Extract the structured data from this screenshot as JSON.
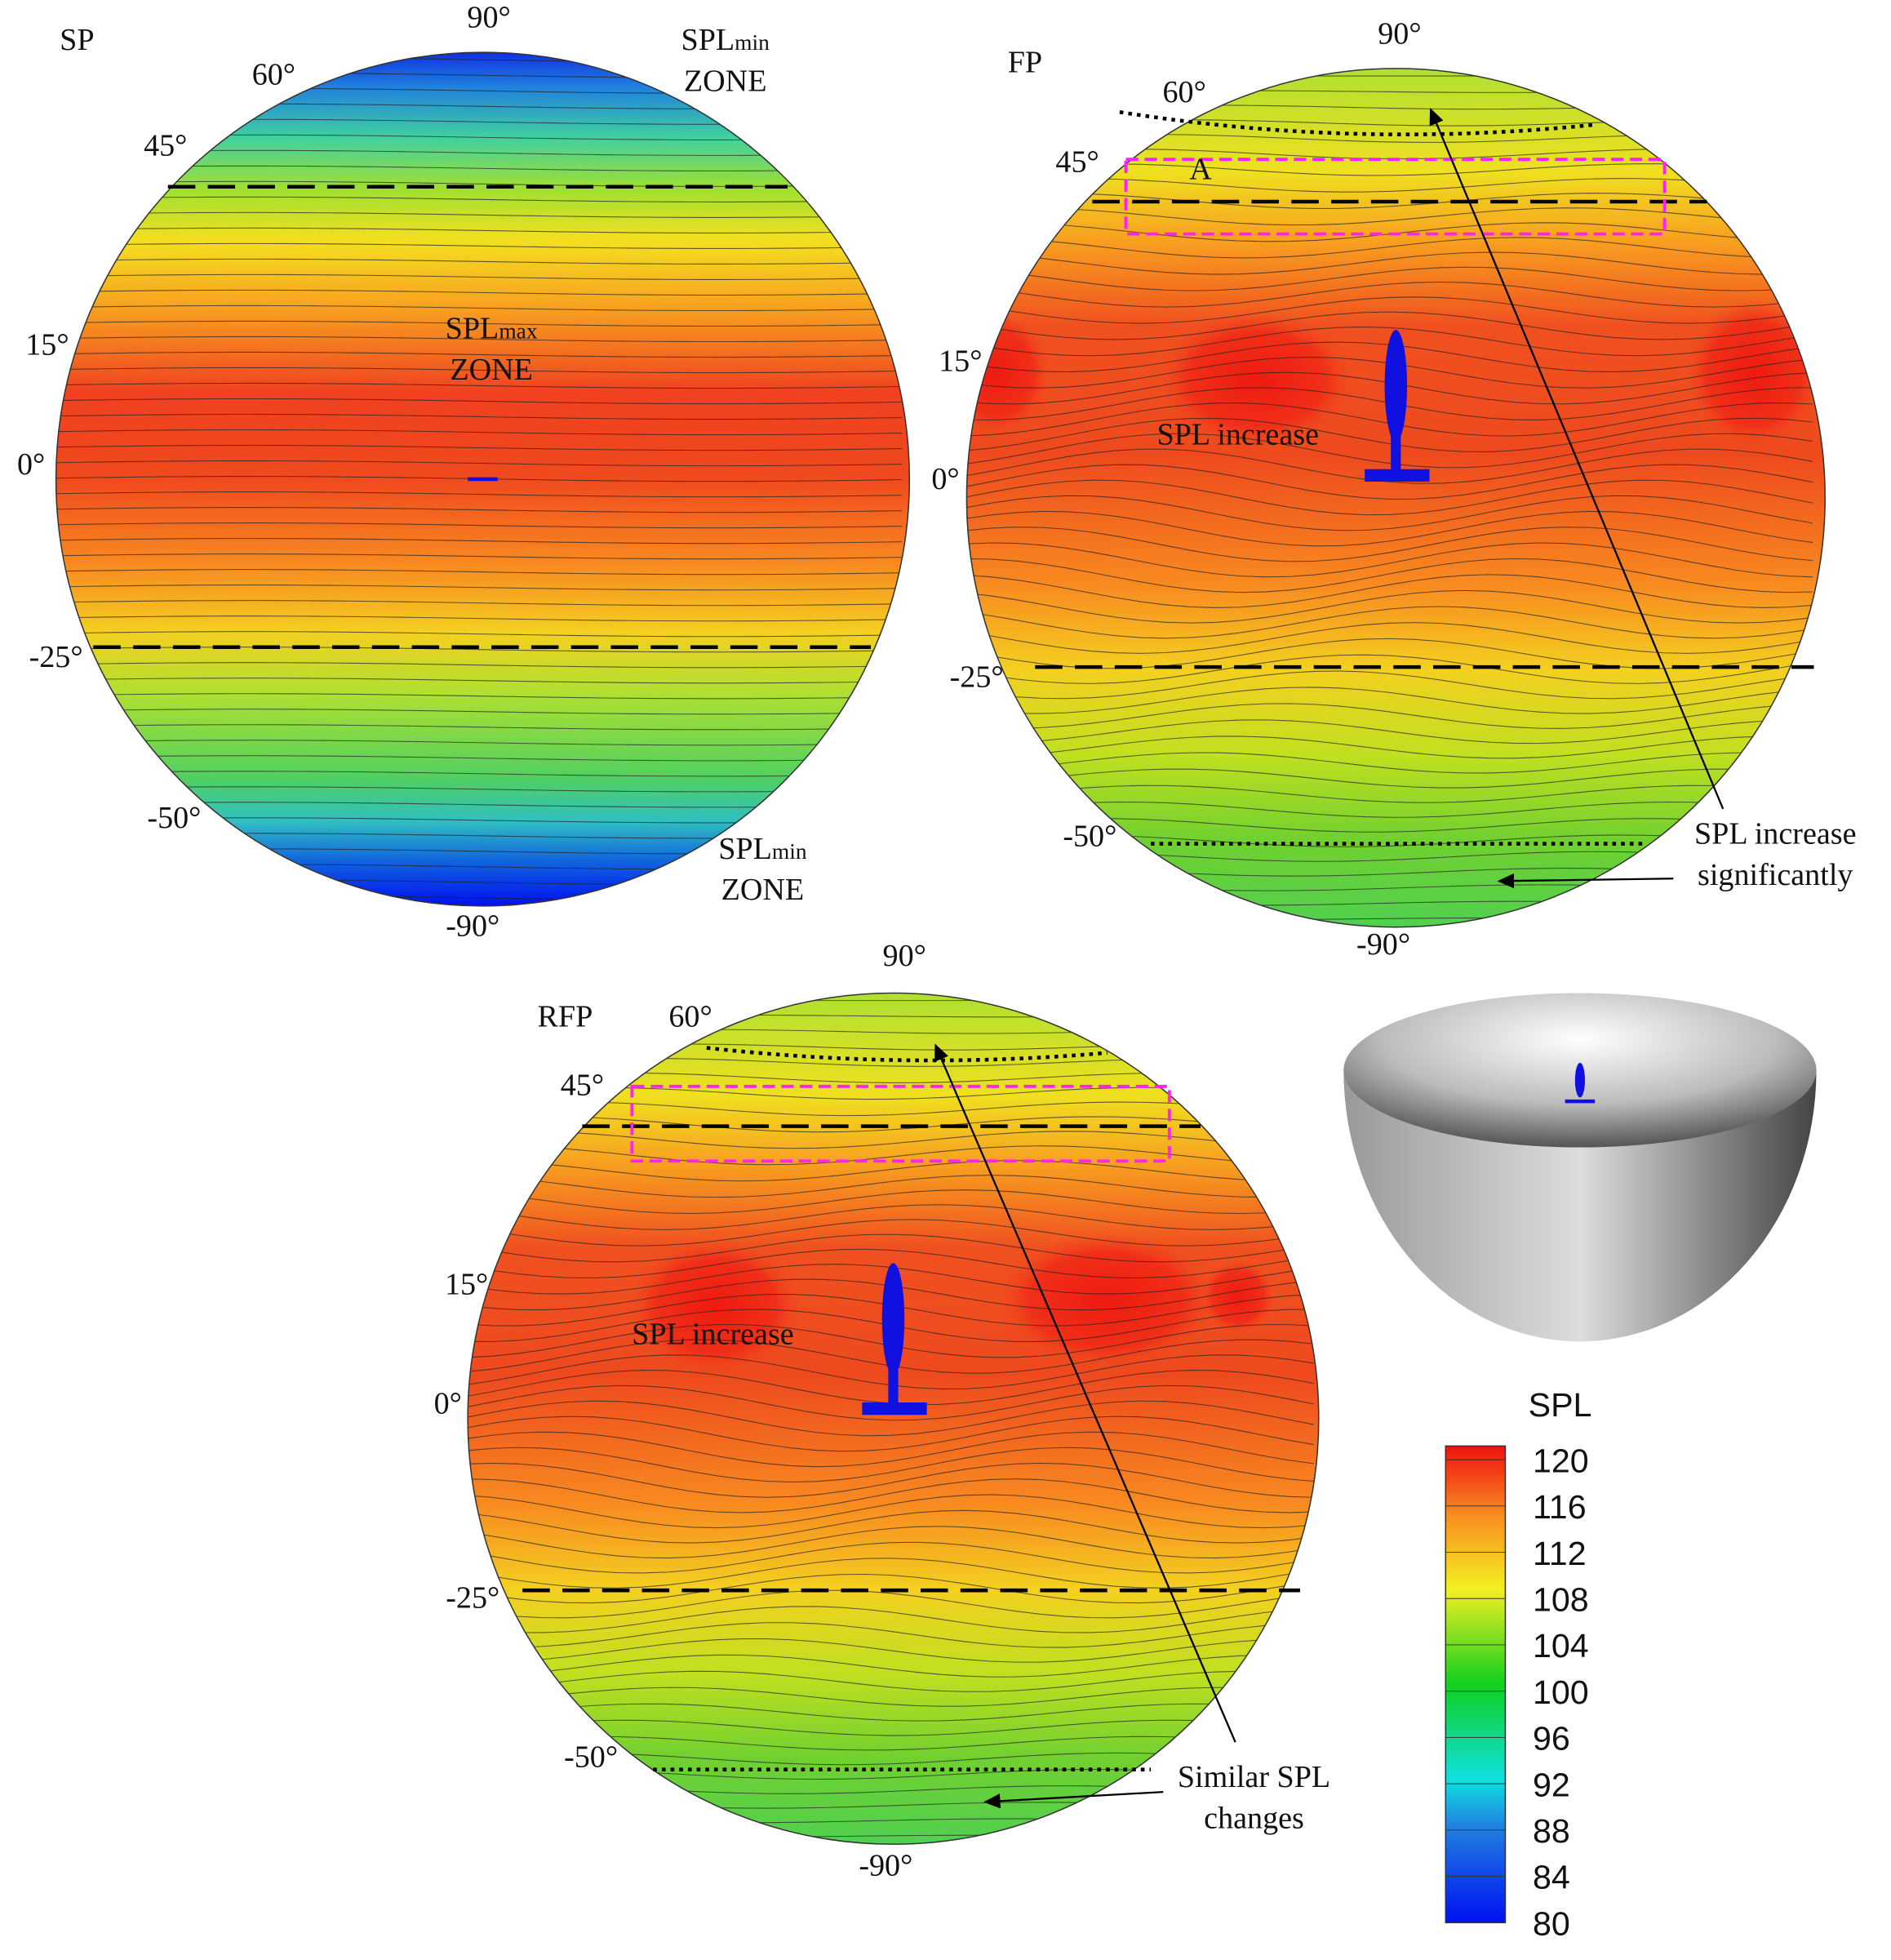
{
  "panels": [
    {
      "name": "SP",
      "angles": [
        "90°",
        "60°",
        "45°",
        "15°",
        "0°",
        "-25°",
        "-50°",
        "-90°"
      ],
      "notes": [
        [
          {
            "text": "SPL",
            "sub": "min"
          },
          "ZONE"
        ],
        [
          {
            "text": "SPL",
            "sub": "max"
          },
          "ZONE"
        ],
        [
          {
            "text": "SPL",
            "sub": "min"
          },
          "ZONE"
        ]
      ]
    },
    {
      "name": "FP",
      "angles": [
        "90°",
        "60°",
        "45°",
        "15°",
        "0°",
        "-25°",
        "-50°",
        "-90°"
      ],
      "notes": [
        [
          "A"
        ],
        [
          "SPL increase"
        ],
        [
          "SPL increase",
          "significantly"
        ]
      ]
    },
    {
      "name": "RFP",
      "angles": [
        "90°",
        "60°",
        "45°",
        "15°",
        "0°",
        "-25°",
        "-50°",
        "-90°"
      ],
      "notes": [
        [
          "SPL increase"
        ],
        [
          "Similar SPL",
          "changes"
        ]
      ]
    }
  ],
  "colorbar": {
    "title": "SPL",
    "ticks": [
      120,
      116,
      112,
      108,
      104,
      100,
      96,
      92,
      88,
      84,
      80
    ]
  }
}
